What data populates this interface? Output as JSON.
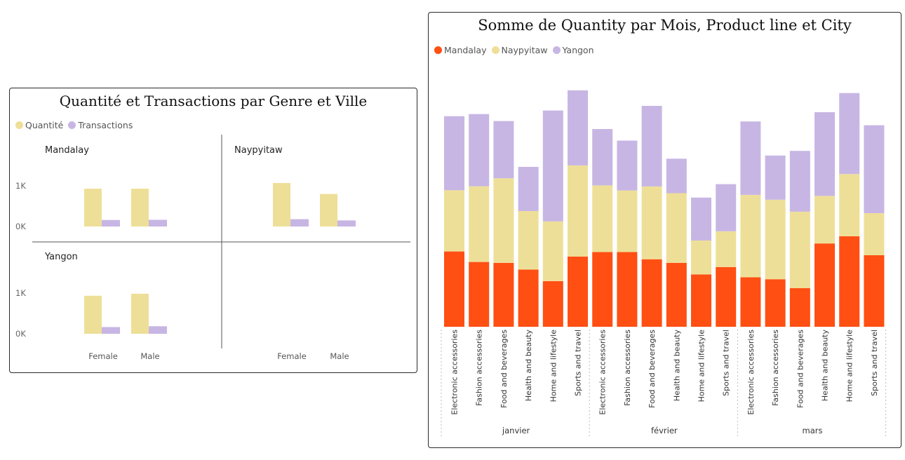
{
  "colors": {
    "mandalay": "#FF4F13",
    "naypyitaw": "#EEDF98",
    "yangon": "#C7B6E4",
    "quantite": "#EEDF98",
    "transactions": "#C7B6E4"
  },
  "left_panel": {
    "title": "Quantité et Transactions par Genre et Ville",
    "legend": [
      "Quantité",
      "Transactions"
    ],
    "y_ticks": [
      "1K",
      "0K"
    ],
    "x_labels": [
      "Female",
      "Male"
    ]
  },
  "right_panel": {
    "title": "Somme de Quantity par Mois, Product line et City",
    "legend": [
      "Mandalay",
      "Naypyitaw",
      "Yangon"
    ]
  },
  "chart_data": [
    {
      "type": "bar",
      "title": "Quantité et Transactions par Genre et Ville",
      "facets": [
        {
          "name": "Mandalay",
          "categories": [
            "Female",
            "Male"
          ],
          "series": [
            {
              "name": "Quantité",
              "values": [
                930,
                930
              ]
            },
            {
              "name": "Transactions",
              "values": [
                160,
                165
              ]
            }
          ]
        },
        {
          "name": "Naypyitaw",
          "categories": [
            "Female",
            "Male"
          ],
          "series": [
            {
              "name": "Quantité",
              "values": [
                1070,
                800
              ]
            },
            {
              "name": "Transactions",
              "values": [
                180,
                150
              ]
            }
          ]
        },
        {
          "name": "Yangon",
          "categories": [
            "Female",
            "Male"
          ],
          "series": [
            {
              "name": "Quantité",
              "values": [
                935,
                985
              ]
            },
            {
              "name": "Transactions",
              "values": [
                165,
                185
              ]
            }
          ]
        }
      ],
      "ylim": [
        0,
        1300
      ],
      "legend_position": "top-left"
    },
    {
      "type": "bar",
      "stacked": true,
      "title": "Somme de Quantity par Mois, Product line et City",
      "months": [
        "janvier",
        "février",
        "mars"
      ],
      "categories": [
        "Electronic accessories",
        "Fashion accessories",
        "Food and beverages",
        "Health and beauty",
        "Home and lifestyle",
        "Sports and travel"
      ],
      "series": [
        {
          "name": "Mandalay",
          "values": [
            [
              358,
              308,
              304,
              272,
              217,
              334
            ],
            [
              355,
              355,
              321,
              304,
              249,
              284
            ],
            [
              235,
              226,
              184,
              396,
              430,
              340
            ]
          ]
        },
        {
          "name": "Naypyitaw",
          "values": [
            [
              291,
              360,
              402,
              278,
              284,
              433
            ],
            [
              317,
              293,
              346,
              331,
              161,
              170
            ],
            [
              392,
              378,
              363,
              226,
              296,
              200
            ]
          ]
        },
        {
          "name": "Yangon",
          "values": [
            [
              352,
              343,
              272,
              210,
              527,
              357
            ],
            [
              268,
              237,
              383,
              164,
              204,
              224
            ],
            [
              349,
              210,
              289,
              398,
              385,
              418
            ]
          ]
        }
      ],
      "ylim": [
        0,
        1130
      ],
      "legend_position": "top-left"
    }
  ]
}
